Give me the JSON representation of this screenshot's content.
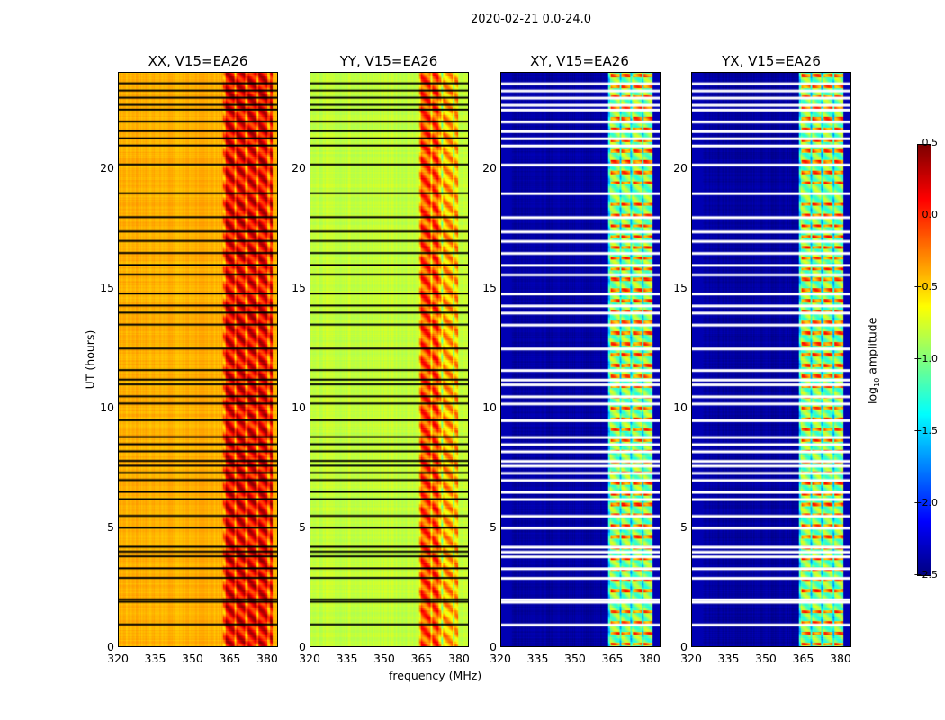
{
  "chart_data": {
    "type": "heatmap",
    "title": "2020-02-21 0.0-24.0",
    "xlabel": "frequency (MHz)",
    "ylabel": "UT (hours)",
    "xlim": [
      320,
      384
    ],
    "ylim": [
      0,
      24
    ],
    "xticks": [
      "320",
      "335",
      "350",
      "365",
      "380"
    ],
    "yticks": [
      "0",
      "5",
      "10",
      "15",
      "20"
    ],
    "colorbar": {
      "label": "log10 amplitude",
      "label_main": "log",
      "label_sub": "10",
      "label_tail": " amplitude",
      "range": [
        -2.5,
        0.5
      ],
      "ticks": [
        "0.5",
        "0.0",
        "−0.5",
        "−1.0",
        "−1.5",
        "−2.0",
        "−2.5"
      ],
      "colormap": "jet"
    },
    "panels": [
      {
        "title": "XX, V15=EA26",
        "base_level": -0.4,
        "band_mhz": [
          362,
          382
        ],
        "band_level": 0.15,
        "flag_color": "#000000"
      },
      {
        "title": "YY, V15=EA26",
        "base_level": -0.8,
        "band_mhz": [
          364,
          380
        ],
        "band_level": -0.1,
        "flag_color": "#000000"
      },
      {
        "title": "XY, V15=EA26",
        "base_level": -2.4,
        "band_mhz": [
          363,
          381
        ],
        "band_level": -1.0,
        "flag_color": "#ffffff"
      },
      {
        "title": "YX, V15=EA26",
        "base_level": -2.4,
        "band_mhz": [
          363,
          381
        ],
        "band_level": -1.0,
        "flag_color": "#ffffff"
      }
    ],
    "flagged_ut_hours": [
      0.95,
      1.9,
      2.0,
      2.9,
      3.3,
      3.8,
      4.0,
      4.2,
      5.0,
      5.5,
      6.2,
      6.5,
      7.0,
      7.3,
      7.6,
      7.8,
      8.2,
      8.5,
      8.8,
      9.5,
      10.2,
      10.5,
      11.0,
      11.2,
      11.6,
      12.5,
      13.5,
      14.0,
      14.3,
      14.8,
      15.6,
      16.0,
      16.5,
      17.0,
      17.4,
      18.0,
      19.0,
      20.2,
      21.0,
      21.3,
      21.6,
      22.0,
      22.5,
      22.7,
      23.0,
      23.3,
      23.6
    ]
  }
}
